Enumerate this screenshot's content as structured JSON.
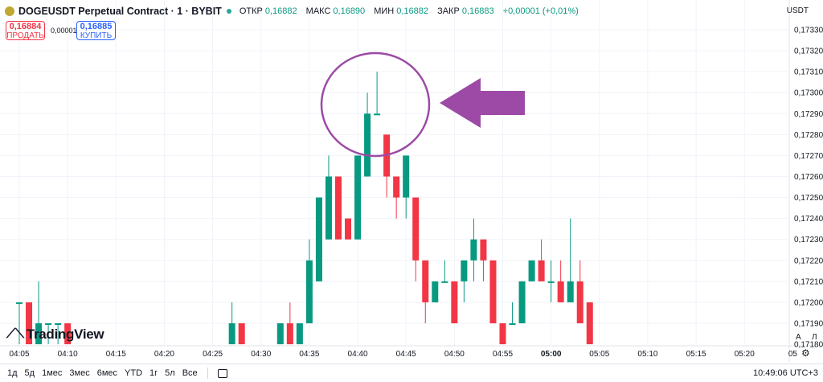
{
  "header": {
    "title": "DOGEUSDT Perpetual Contract · 1 · BYBIT",
    "ohlc": [
      {
        "label": "ОТКР",
        "value": "0,16882"
      },
      {
        "label": "МАКС",
        "value": "0,16890"
      },
      {
        "label": "МИН",
        "value": "0,16882"
      },
      {
        "label": "ЗАКР",
        "value": "0,16883"
      }
    ],
    "change": "+0,00001 (+0,01%)"
  },
  "trade": {
    "sell_price": "0,16884",
    "sell_label": "ПРОДАТЬ",
    "spread": "0,00001",
    "buy_price": "0,16885",
    "buy_label": "КУПИТЬ"
  },
  "currency": "USDT",
  "logo_text": "TradingView",
  "bottom_bar": {
    "ranges": [
      "1д",
      "5д",
      "1мес",
      "3мес",
      "6мес",
      "YTD",
      "1г",
      "5л",
      "Все"
    ],
    "clock": "10:49:06 UTC+3"
  },
  "axis_buttons": {
    "auto": "A",
    "log": "Л"
  },
  "colors": {
    "up": "#089981",
    "down": "#f23645",
    "annotation": "#9c4aa6"
  },
  "chart_data": {
    "type": "candlestick",
    "y_axis": {
      "ticks": [
        0.1733,
        0.1732,
        0.1731,
        0.173,
        0.1729,
        0.1728,
        0.1727,
        0.1726,
        0.1725,
        0.1724,
        0.1723,
        0.1722,
        0.1721,
        0.172,
        0.1719,
        0.1718
      ],
      "tick_labels": [
        "0,17330",
        "0,17320",
        "0,17310",
        "0,17300",
        "0,17290",
        "0,17280",
        "0,17270",
        "0,17260",
        "0,17250",
        "0,17240",
        "0,17230",
        "0,17220",
        "0,17210",
        "0,17200",
        "0,17190",
        "0,17180"
      ]
    },
    "x_axis": {
      "tick_minutes": [
        5,
        10,
        15,
        20,
        25,
        30,
        35,
        40,
        45,
        50,
        55,
        60,
        65,
        70,
        75,
        80,
        85
      ],
      "tick_labels": [
        "04:05",
        "04:10",
        "04:15",
        "04:20",
        "04:25",
        "04:30",
        "04:35",
        "04:40",
        "04:45",
        "04:50",
        "04:55",
        "05:00",
        "05:05",
        "05:10",
        "05:15",
        "05:20",
        "05"
      ],
      "bold_labels": [
        "05:00"
      ]
    },
    "candles": [
      {
        "t": 5,
        "o": 0.172,
        "h": 0.172,
        "l": 0.1718,
        "c": 0.172
      },
      {
        "t": 6,
        "o": 0.172,
        "h": 0.172,
        "l": 0.1718,
        "c": 0.1718
      },
      {
        "t": 7,
        "o": 0.1718,
        "h": 0.1721,
        "l": 0.1718,
        "c": 0.1719
      },
      {
        "t": 8,
        "o": 0.1719,
        "h": 0.1719,
        "l": 0.1718,
        "c": 0.1719
      },
      {
        "t": 9,
        "o": 0.1719,
        "h": 0.1719,
        "l": 0.1718,
        "c": 0.1719
      },
      {
        "t": 10,
        "o": 0.1719,
        "h": 0.1719,
        "l": 0.1718,
        "c": 0.1718
      },
      {
        "t": 27,
        "o": 0.1718,
        "h": 0.172,
        "l": 0.1718,
        "c": 0.1719
      },
      {
        "t": 28,
        "o": 0.1719,
        "h": 0.1719,
        "l": 0.1718,
        "c": 0.1718
      },
      {
        "t": 32,
        "o": 0.1718,
        "h": 0.1719,
        "l": 0.1718,
        "c": 0.1719
      },
      {
        "t": 33,
        "o": 0.1719,
        "h": 0.172,
        "l": 0.1718,
        "c": 0.1718
      },
      {
        "t": 34,
        "o": 0.1718,
        "h": 0.1719,
        "l": 0.1718,
        "c": 0.1719
      },
      {
        "t": 35,
        "o": 0.1719,
        "h": 0.1723,
        "l": 0.1719,
        "c": 0.1722
      },
      {
        "t": 36,
        "o": 0.1721,
        "h": 0.1725,
        "l": 0.1721,
        "c": 0.1725
      },
      {
        "t": 37,
        "o": 0.1723,
        "h": 0.1727,
        "l": 0.1723,
        "c": 0.1726
      },
      {
        "t": 38,
        "o": 0.1726,
        "h": 0.1726,
        "l": 0.1723,
        "c": 0.1723
      },
      {
        "t": 39,
        "o": 0.1724,
        "h": 0.1724,
        "l": 0.1723,
        "c": 0.1723
      },
      {
        "t": 40,
        "o": 0.1723,
        "h": 0.1727,
        "l": 0.1723,
        "c": 0.1727
      },
      {
        "t": 41,
        "o": 0.1726,
        "h": 0.173,
        "l": 0.1726,
        "c": 0.1729
      },
      {
        "t": 42,
        "o": 0.1729,
        "h": 0.1731,
        "l": 0.1729,
        "c": 0.1729
      },
      {
        "t": 43,
        "o": 0.1728,
        "h": 0.1728,
        "l": 0.1725,
        "c": 0.1726
      },
      {
        "t": 44,
        "o": 0.1726,
        "h": 0.1726,
        "l": 0.1724,
        "c": 0.1725
      },
      {
        "t": 45,
        "o": 0.1725,
        "h": 0.1727,
        "l": 0.1724,
        "c": 0.1727
      },
      {
        "t": 46,
        "o": 0.1725,
        "h": 0.1725,
        "l": 0.1721,
        "c": 0.1722
      },
      {
        "t": 47,
        "o": 0.1722,
        "h": 0.1722,
        "l": 0.1719,
        "c": 0.172
      },
      {
        "t": 48,
        "o": 0.172,
        "h": 0.1721,
        "l": 0.172,
        "c": 0.1721
      },
      {
        "t": 49,
        "o": 0.1721,
        "h": 0.1722,
        "l": 0.1721,
        "c": 0.1721
      },
      {
        "t": 50,
        "o": 0.1721,
        "h": 0.1721,
        "l": 0.1719,
        "c": 0.1719
      },
      {
        "t": 51,
        "o": 0.1721,
        "h": 0.1722,
        "l": 0.172,
        "c": 0.1722
      },
      {
        "t": 52,
        "o": 0.1722,
        "h": 0.1724,
        "l": 0.1721,
        "c": 0.1723
      },
      {
        "t": 53,
        "o": 0.1723,
        "h": 0.1723,
        "l": 0.1721,
        "c": 0.1722
      },
      {
        "t": 54,
        "o": 0.1722,
        "h": 0.1722,
        "l": 0.1719,
        "c": 0.1719
      },
      {
        "t": 55,
        "o": 0.1719,
        "h": 0.1719,
        "l": 0.1718,
        "c": 0.1718
      },
      {
        "t": 56,
        "o": 0.1719,
        "h": 0.172,
        "l": 0.1719,
        "c": 0.1719
      },
      {
        "t": 57,
        "o": 0.1719,
        "h": 0.1721,
        "l": 0.1719,
        "c": 0.1721
      },
      {
        "t": 58,
        "o": 0.1721,
        "h": 0.1722,
        "l": 0.1721,
        "c": 0.1722
      },
      {
        "t": 59,
        "o": 0.1722,
        "h": 0.1723,
        "l": 0.1721,
        "c": 0.1721
      },
      {
        "t": 60,
        "o": 0.1721,
        "h": 0.1722,
        "l": 0.172,
        "c": 0.1721
      },
      {
        "t": 61,
        "o": 0.1721,
        "h": 0.1722,
        "l": 0.172,
        "c": 0.172
      },
      {
        "t": 62,
        "o": 0.172,
        "h": 0.1724,
        "l": 0.172,
        "c": 0.1721
      },
      {
        "t": 63,
        "o": 0.1721,
        "h": 0.1722,
        "l": 0.1719,
        "c": 0.1719
      },
      {
        "t": 64,
        "o": 0.172,
        "h": 0.172,
        "l": 0.1718,
        "c": 0.1718
      }
    ]
  }
}
